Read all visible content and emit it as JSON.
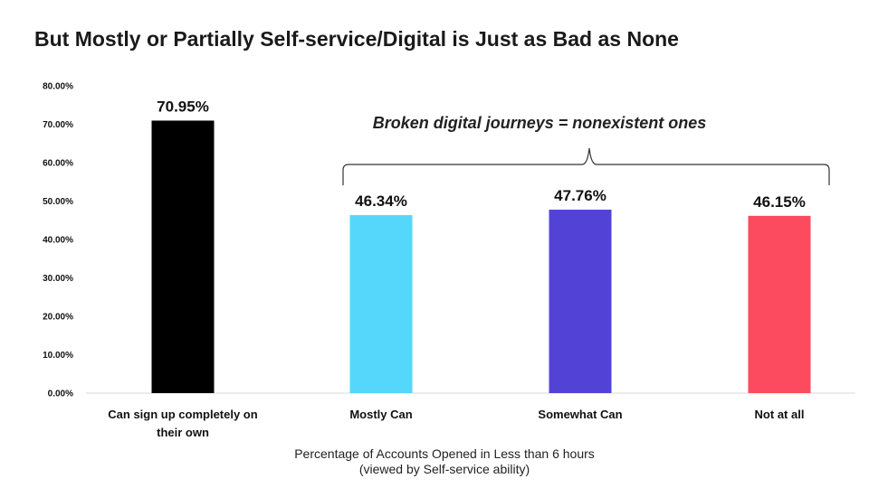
{
  "chart_data": {
    "type": "bar",
    "title": "But Mostly or Partially Self-service/Digital is Just as Bad as None",
    "categories": [
      [
        "Can sign up completely on",
        "their own"
      ],
      [
        "Mostly Can"
      ],
      [
        "Somewhat Can"
      ],
      [
        "Not at all"
      ]
    ],
    "values": [
      70.95,
      46.34,
      47.76,
      46.15
    ],
    "data_labels": [
      "70.95%",
      "46.34%",
      "47.76%",
      "46.15%"
    ],
    "colors": [
      "#000000",
      "#55d6fb",
      "#5243d6",
      "#fc4a5e"
    ],
    "ylim": [
      0,
      80
    ],
    "yticks": [
      "0.00%",
      "10.00%",
      "20.00%",
      "30.00%",
      "40.00%",
      "50.00%",
      "60.00%",
      "70.00%",
      "80.00%"
    ],
    "xlabel": [
      "Percentage of Accounts Opened in Less than 6 hours",
      "(viewed by Self-service ability)"
    ],
    "ylabel": "",
    "grid": false,
    "annotation": "Broken digital journeys = nonexistent ones",
    "annotation_bracket_categories": [
      1,
      3
    ]
  }
}
